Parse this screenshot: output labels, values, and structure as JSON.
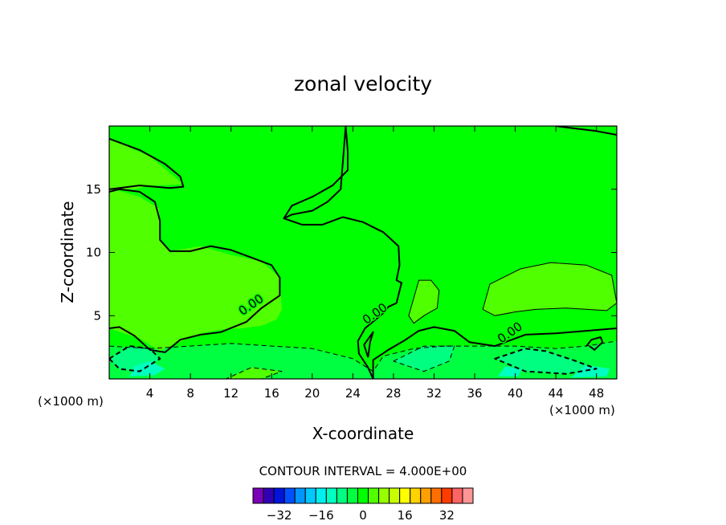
{
  "chart_data": {
    "type": "heatmap",
    "title": "zonal velocity",
    "xlabel": "X-coordinate",
    "ylabel": "Z-coordinate",
    "x_unit_left": "(×1000 m)",
    "x_unit_right": "(×1000 m)",
    "xlim": [
      0,
      50
    ],
    "ylim": [
      0,
      20
    ],
    "xticks": [
      4,
      8,
      12,
      16,
      20,
      24,
      28,
      32,
      36,
      40,
      44,
      48
    ],
    "yticks": [
      5,
      10,
      15
    ],
    "contour_interval_text": "CONTOUR INTERVAL = 4.000E+00",
    "contour_labels": [
      {
        "text": "0.00",
        "x": 14.2,
        "z": 5.6
      },
      {
        "text": "0.00",
        "x": 26.4,
        "z": 4.9
      },
      {
        "text": "0.00",
        "x": 39.7,
        "z": 3.4
      }
    ],
    "colorbar": {
      "levels": [
        -40,
        -36,
        -32,
        -28,
        -24,
        -20,
        -16,
        -12,
        -8,
        -4,
        0,
        4,
        8,
        12,
        16,
        20,
        24,
        28,
        32,
        36,
        40
      ],
      "colors": [
        "#7a00b8",
        "#3200b4",
        "#0014dc",
        "#0050ff",
        "#0096ff",
        "#00c8ff",
        "#00f0f0",
        "#00ffc0",
        "#00ff80",
        "#00ff40",
        "#00ff00",
        "#50ff00",
        "#96ff00",
        "#c8ff00",
        "#ffff00",
        "#ffd200",
        "#ffa000",
        "#ff6e00",
        "#ff3c00",
        "#ff6464",
        "#ff9696"
      ],
      "tick_labels": [
        "−32",
        "−16",
        "0",
        "16",
        "32"
      ],
      "tick_values": [
        -32,
        -16,
        0,
        16,
        32
      ]
    },
    "background_value": 0,
    "regions": [
      {
        "value": -4,
        "points": [
          [
            0,
            0
          ],
          [
            50,
            0
          ],
          [
            50,
            3
          ],
          [
            47,
            2.6
          ],
          [
            44,
            2.4
          ],
          [
            40,
            2.6
          ],
          [
            36,
            2.6
          ],
          [
            33,
            2.6
          ],
          [
            30,
            2.4
          ],
          [
            27,
            1.8
          ],
          [
            26,
            0.6
          ],
          [
            24,
            1.6
          ],
          [
            20,
            2.4
          ],
          [
            16,
            2.6
          ],
          [
            12,
            2.8
          ],
          [
            8,
            2.6
          ],
          [
            4,
            2.4
          ],
          [
            0,
            2.6
          ]
        ]
      },
      {
        "value": 4,
        "points": [
          [
            0,
            2.2
          ],
          [
            0,
            19
          ],
          [
            4,
            17.6
          ],
          [
            7.3,
            15.4
          ],
          [
            5,
            15.3
          ],
          [
            4,
            15.3
          ],
          [
            2.5,
            15
          ],
          [
            0,
            15
          ],
          [
            0,
            4
          ],
          [
            3,
            3.2
          ],
          [
            5,
            2.2
          ],
          [
            6,
            2.6
          ],
          [
            9,
            3.6
          ],
          [
            11,
            3.9
          ],
          [
            13,
            4
          ],
          [
            15,
            4.2
          ],
          [
            16.5,
            4.7
          ],
          [
            17,
            5.5
          ],
          [
            16.8,
            8
          ],
          [
            15,
            9.3
          ],
          [
            12,
            9.8
          ],
          [
            9,
            10.5
          ],
          [
            6,
            10.1
          ],
          [
            5,
            11
          ],
          [
            4.9,
            13.5
          ],
          [
            3,
            14.4
          ],
          [
            0.5,
            15
          ],
          [
            0,
            15
          ],
          [
            0,
            2.2
          ]
        ]
      },
      {
        "value": 4,
        "points": [
          [
            29.5,
            5
          ],
          [
            30.5,
            7.8
          ],
          [
            31.7,
            7.8
          ],
          [
            32.5,
            7
          ],
          [
            32.3,
            5.6
          ],
          [
            31,
            5
          ],
          [
            30,
            4.4
          ]
        ]
      },
      {
        "value": 4,
        "points": [
          [
            36.8,
            5.5
          ],
          [
            37.5,
            7.5
          ],
          [
            40.5,
            8.7
          ],
          [
            43.5,
            9.2
          ],
          [
            47,
            9
          ],
          [
            49.5,
            8.2
          ],
          [
            50,
            6
          ],
          [
            49,
            5.4
          ],
          [
            45,
            5.6
          ],
          [
            42,
            5.5
          ],
          [
            40,
            5.3
          ],
          [
            38,
            5
          ],
          [
            36.8,
            5.5
          ]
        ]
      },
      {
        "value": -8,
        "points": [
          [
            0,
            1.6
          ],
          [
            2,
            2.6
          ],
          [
            4,
            2.4
          ],
          [
            5,
            1.6
          ],
          [
            3,
            0.6
          ],
          [
            1,
            0.8
          ]
        ]
      },
      {
        "value": -8,
        "points": [
          [
            28,
            1.4
          ],
          [
            31,
            2.6
          ],
          [
            34,
            2.6
          ],
          [
            33.5,
            1.4
          ],
          [
            31,
            0.6
          ]
        ]
      },
      {
        "value": -8,
        "points": [
          [
            38,
            1.6
          ],
          [
            41,
            2.4
          ],
          [
            43,
            2.2
          ],
          [
            46,
            1.4
          ],
          [
            48,
            0.8
          ],
          [
            45,
            0.4
          ],
          [
            41,
            0.6
          ]
        ]
      },
      {
        "value": -12,
        "points": [
          [
            2,
            0.2
          ],
          [
            4.5,
            0.3
          ],
          [
            5.5,
            0.8
          ],
          [
            4,
            1.4
          ],
          [
            2.5,
            1
          ]
        ]
      },
      {
        "value": -12,
        "points": [
          [
            45.5,
            0.1
          ],
          [
            49,
            0.2
          ],
          [
            49.3,
            0.8
          ],
          [
            47,
            1.1
          ]
        ]
      },
      {
        "value": -12,
        "points": [
          [
            38.3,
            0.2
          ],
          [
            40.3,
            0.2
          ],
          [
            40.6,
            0.8
          ],
          [
            39,
            1
          ]
        ]
      },
      {
        "value": 4,
        "points": [
          [
            11.5,
            0
          ],
          [
            15,
            0
          ],
          [
            17,
            0.6
          ],
          [
            14,
            0.9
          ]
        ]
      }
    ],
    "contours": [
      {
        "style": "solid",
        "width": 2,
        "closed": false,
        "points": [
          [
            0,
            19
          ],
          [
            3,
            18.1
          ],
          [
            5.5,
            17
          ],
          [
            7,
            16
          ],
          [
            7.3,
            15.2
          ],
          [
            6,
            15.1
          ],
          [
            3,
            15.3
          ],
          [
            1,
            15.1
          ],
          [
            0,
            15
          ]
        ]
      },
      {
        "style": "solid",
        "width": 2,
        "closed": false,
        "points": [
          [
            0,
            14.8
          ],
          [
            1,
            15
          ],
          [
            3,
            14.8
          ],
          [
            4.5,
            14
          ],
          [
            5,
            12.5
          ],
          [
            5,
            11
          ],
          [
            6,
            10.1
          ],
          [
            8,
            10.1
          ],
          [
            10,
            10.5
          ],
          [
            12,
            10.2
          ],
          [
            14,
            9.6
          ],
          [
            16,
            9
          ],
          [
            16.8,
            8
          ],
          [
            16.8,
            6.6
          ],
          [
            15,
            5.6
          ],
          [
            13.5,
            4.5
          ],
          [
            11,
            3.7
          ],
          [
            9,
            3.5
          ],
          [
            7,
            3.1
          ],
          [
            5.5,
            2.1
          ],
          [
            4,
            2.3
          ],
          [
            2.5,
            3.4
          ],
          [
            1,
            4.1
          ],
          [
            0,
            4
          ]
        ]
      },
      {
        "style": "solid",
        "width": 2,
        "closed": false,
        "points": [
          [
            23.3,
            20
          ],
          [
            23,
            17
          ],
          [
            22.8,
            15
          ],
          [
            21.5,
            14
          ],
          [
            20,
            13.3
          ],
          [
            18,
            13
          ],
          [
            17.2,
            12.7
          ],
          [
            18,
            13.7
          ],
          [
            20,
            14.4
          ],
          [
            22,
            15.3
          ],
          [
            23.5,
            16.5
          ],
          [
            23.5,
            18
          ],
          [
            23.3,
            20
          ]
        ]
      },
      {
        "style": "solid",
        "width": 2,
        "closed": false,
        "points": [
          [
            17.2,
            12.7
          ],
          [
            19,
            12.2
          ],
          [
            21,
            12.2
          ],
          [
            23,
            12.8
          ],
          [
            25,
            12.4
          ],
          [
            27,
            11.6
          ],
          [
            28.5,
            10.5
          ],
          [
            28.6,
            9
          ],
          [
            28.3,
            7.8
          ],
          [
            28.8,
            7.6
          ],
          [
            28.3,
            6
          ],
          [
            27.5,
            5.7
          ],
          [
            27,
            5.2
          ],
          [
            25.2,
            4
          ],
          [
            24.5,
            3
          ],
          [
            24.6,
            2
          ],
          [
            25.5,
            0.9
          ],
          [
            26,
            0
          ]
        ]
      },
      {
        "style": "solid",
        "width": 2,
        "closed": false,
        "points": [
          [
            25.5,
            1.7
          ],
          [
            25.7,
            2.9
          ],
          [
            26,
            3.7
          ],
          [
            25.1,
            2.7
          ],
          [
            25.5,
            1.7
          ]
        ]
      },
      {
        "style": "solid",
        "width": 2,
        "closed": false,
        "points": [
          [
            26,
            0
          ],
          [
            26,
            1.5
          ],
          [
            27.5,
            2.3
          ],
          [
            29,
            3
          ],
          [
            30.5,
            3.8
          ],
          [
            32,
            4.1
          ],
          [
            34,
            3.8
          ],
          [
            35.5,
            2.9
          ],
          [
            38,
            2.6
          ],
          [
            41,
            3.5
          ],
          [
            44,
            3.6
          ],
          [
            47,
            3.8
          ],
          [
            50,
            4
          ]
        ]
      },
      {
        "style": "solid",
        "width": 2,
        "closed": false,
        "points": [
          [
            47,
            2.6
          ],
          [
            47.5,
            3.1
          ],
          [
            48.4,
            3.3
          ],
          [
            48.6,
            2.9
          ],
          [
            47.8,
            2.3
          ],
          [
            47.3,
            2.6
          ]
        ]
      },
      {
        "style": "solid",
        "width": 2,
        "closed": false,
        "points": [
          [
            50,
            19.3
          ],
          [
            48,
            19.6
          ],
          [
            45,
            19.9
          ],
          [
            44,
            20
          ]
        ]
      },
      {
        "style": "solid",
        "width": 1,
        "closed": true,
        "points": [
          [
            29.5,
            5
          ],
          [
            30.5,
            7.8
          ],
          [
            31.7,
            7.8
          ],
          [
            32.5,
            7
          ],
          [
            32.3,
            5.6
          ],
          [
            31,
            5
          ],
          [
            30,
            4.4
          ]
        ]
      },
      {
        "style": "solid",
        "width": 1,
        "closed": true,
        "points": [
          [
            36.8,
            5.5
          ],
          [
            37.5,
            7.5
          ],
          [
            40.5,
            8.7
          ],
          [
            43.5,
            9.2
          ],
          [
            47,
            9
          ],
          [
            49.5,
            8.2
          ],
          [
            50,
            6
          ],
          [
            49,
            5.4
          ],
          [
            45,
            5.6
          ],
          [
            42,
            5.5
          ],
          [
            40,
            5.3
          ],
          [
            38,
            5
          ],
          [
            36.8,
            5.5
          ]
        ]
      },
      {
        "style": "dashed",
        "width": 1,
        "closed": false,
        "points": [
          [
            0,
            2.6
          ],
          [
            4,
            2.4
          ],
          [
            8,
            2.6
          ],
          [
            12,
            2.8
          ],
          [
            16,
            2.6
          ],
          [
            20,
            2.4
          ],
          [
            24,
            1.6
          ],
          [
            26,
            0.6
          ],
          [
            27,
            1.8
          ],
          [
            30,
            2.4
          ],
          [
            33,
            2.6
          ],
          [
            36,
            2.6
          ],
          [
            40,
            2.6
          ],
          [
            44,
            2.4
          ],
          [
            47,
            2.6
          ],
          [
            50,
            3
          ]
        ]
      },
      {
        "style": "dashed",
        "width": 2,
        "closed": true,
        "points": [
          [
            0,
            1.6
          ],
          [
            2,
            2.6
          ],
          [
            4,
            2.4
          ],
          [
            5,
            1.6
          ],
          [
            3,
            0.6
          ],
          [
            1,
            0.8
          ]
        ]
      },
      {
        "style": "dashed",
        "width": 2,
        "closed": true,
        "points": [
          [
            38,
            1.6
          ],
          [
            41,
            2.4
          ],
          [
            43,
            2.2
          ],
          [
            46,
            1.4
          ],
          [
            48,
            0.8
          ],
          [
            45,
            0.4
          ],
          [
            41,
            0.6
          ]
        ]
      },
      {
        "style": "dashed",
        "width": 1,
        "closed": true,
        "points": [
          [
            28,
            1.4
          ],
          [
            31,
            2.6
          ],
          [
            34,
            2.6
          ],
          [
            33.5,
            1.4
          ],
          [
            31,
            0.6
          ]
        ]
      },
      {
        "style": "dashed",
        "width": 1,
        "closed": true,
        "points": [
          [
            11.5,
            0
          ],
          [
            15,
            0
          ],
          [
            17,
            0.6
          ],
          [
            14,
            0.9
          ]
        ]
      }
    ]
  }
}
